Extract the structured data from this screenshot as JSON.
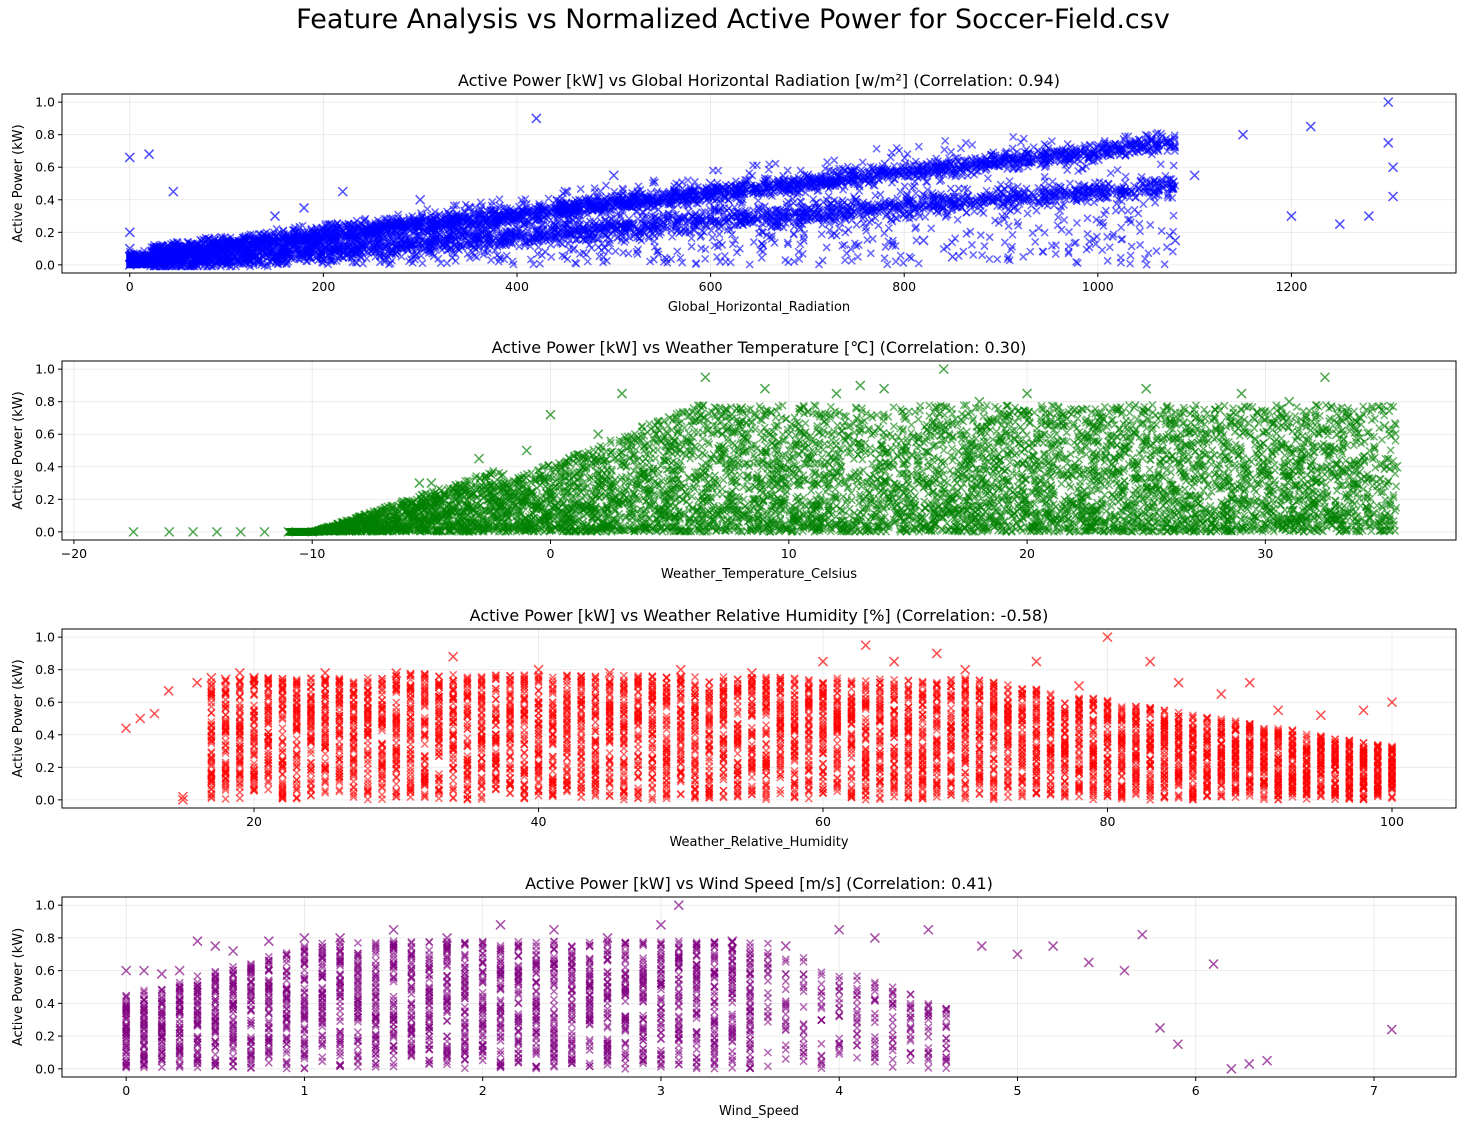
{
  "suptitle": "Feature Analysis vs Normalized Active Power for Soccer-Field.csv",
  "chart_data": [
    {
      "type": "scatter",
      "title": "Active Power [kW] vs Global Horizontal Radiation [w/m²] (Correlation: 0.94)",
      "xlabel": "Global_Horizontal_Radiation",
      "ylabel": "Active Power (kW)",
      "marker": "x",
      "color": "#0000ff",
      "xlim": [
        -70,
        1370
      ],
      "ylim": [
        -0.05,
        1.05
      ],
      "xticks": [
        0,
        200,
        400,
        600,
        800,
        1000,
        1200
      ],
      "yticks": [
        0.0,
        0.2,
        0.4,
        0.6,
        0.8,
        1.0
      ],
      "grid": true,
      "x": [
        0,
        0,
        0,
        0,
        0,
        20,
        20,
        45,
        100,
        150,
        180,
        220,
        250,
        300,
        350,
        400,
        420,
        450,
        500,
        560,
        600,
        650,
        700,
        750,
        800,
        820,
        850,
        900,
        950,
        1000,
        1050,
        1080,
        1100,
        1150,
        1200,
        1220,
        1250,
        1280,
        1300,
        1300,
        1305,
        1305
      ],
      "y": [
        0.0,
        0.05,
        0.1,
        0.2,
        0.66,
        0.68,
        0.05,
        0.45,
        0.15,
        0.3,
        0.35,
        0.45,
        0.25,
        0.4,
        0.35,
        0.3,
        0.9,
        0.45,
        0.55,
        0.3,
        0.5,
        0.35,
        0.55,
        0.4,
        0.6,
        0.15,
        0.05,
        0.45,
        0.65,
        0.65,
        0.7,
        0.15,
        0.55,
        0.8,
        0.3,
        0.85,
        0.25,
        0.3,
        1.0,
        0.75,
        0.6,
        0.42
      ]
    },
    {
      "type": "scatter",
      "title": "Active Power [kW] vs Weather Temperature [℃] (Correlation: 0.30)",
      "xlabel": "Weather_Temperature_Celsius",
      "ylabel": "Active Power (kW)",
      "marker": "x",
      "color": "#008000",
      "xlim": [
        -20.5,
        38
      ],
      "ylim": [
        -0.05,
        1.05
      ],
      "xticks": [
        -20,
        -10,
        0,
        10,
        20,
        30
      ],
      "yticks": [
        0.0,
        0.2,
        0.4,
        0.6,
        0.8,
        1.0
      ],
      "grid": true,
      "x": [
        -17.5,
        -16,
        -15,
        -14,
        -13,
        -12,
        -11,
        -10,
        -8,
        -6,
        -5.5,
        -5,
        -4,
        -3,
        -2,
        -1,
        0,
        2,
        3,
        5,
        6.5,
        8,
        9,
        10,
        12,
        13,
        14,
        16.5,
        18,
        20,
        22,
        25,
        27,
        29,
        31,
        32.5,
        33,
        34,
        35,
        35.5
      ],
      "y": [
        0.0,
        0.0,
        0.0,
        0.0,
        0.0,
        0.0,
        0.0,
        0.0,
        0.02,
        0.05,
        0.3,
        0.3,
        0.2,
        0.45,
        0.35,
        0.5,
        0.72,
        0.6,
        0.85,
        0.7,
        0.95,
        0.76,
        0.88,
        0.6,
        0.85,
        0.9,
        0.88,
        1.0,
        0.8,
        0.85,
        0.75,
        0.88,
        0.75,
        0.85,
        0.8,
        0.95,
        0.6,
        0.7,
        0.65,
        0.4
      ]
    },
    {
      "type": "scatter",
      "title": "Active Power [kW] vs Weather Relative Humidity [%] (Correlation: -0.58)",
      "xlabel": "Weather_Relative_Humidity",
      "ylabel": "Active Power (kW)",
      "marker": "x",
      "color": "#ff0000",
      "xlim": [
        6.5,
        104.5
      ],
      "ylim": [
        -0.05,
        1.05
      ],
      "xticks": [
        20,
        40,
        60,
        80,
        100
      ],
      "yticks": [
        0.0,
        0.2,
        0.4,
        0.6,
        0.8,
        1.0
      ],
      "grid": true,
      "x": [
        11,
        12,
        13,
        14,
        15,
        15,
        16,
        17,
        18,
        19,
        20,
        25,
        30,
        34,
        40,
        45,
        50,
        55,
        60,
        63,
        65,
        68,
        70,
        75,
        78,
        80,
        83,
        85,
        88,
        90,
        92,
        95,
        98,
        100
      ],
      "y": [
        0.44,
        0.5,
        0.53,
        0.67,
        0.0,
        0.02,
        0.72,
        0.75,
        0.74,
        0.78,
        0.75,
        0.78,
        0.78,
        0.88,
        0.8,
        0.78,
        0.8,
        0.78,
        0.85,
        0.95,
        0.85,
        0.9,
        0.8,
        0.85,
        0.7,
        1.0,
        0.85,
        0.72,
        0.65,
        0.72,
        0.55,
        0.52,
        0.55,
        0.6
      ]
    },
    {
      "type": "scatter",
      "title": "Active Power [kW] vs Wind Speed [m/s] (Correlation: 0.41)",
      "xlabel": "Wind_Speed",
      "ylabel": "Active Power (kW)",
      "marker": "x",
      "color": "#800080",
      "xlim": [
        -0.36,
        7.46
      ],
      "ylim": [
        -0.05,
        1.05
      ],
      "xticks": [
        0,
        1,
        2,
        3,
        4,
        5,
        6,
        7
      ],
      "yticks": [
        0.0,
        0.2,
        0.4,
        0.6,
        0.8,
        1.0
      ],
      "grid": true,
      "x": [
        0,
        0.1,
        0.2,
        0.3,
        0.4,
        0.5,
        0.6,
        0.8,
        1.0,
        1.2,
        1.5,
        1.8,
        2.1,
        2.4,
        2.7,
        3.0,
        3.1,
        3.4,
        3.7,
        4.0,
        4.2,
        4.5,
        4.8,
        5.0,
        5.2,
        5.4,
        5.6,
        5.7,
        5.8,
        5.9,
        6.1,
        6.2,
        6.3,
        6.4,
        7.1
      ],
      "y": [
        0.6,
        0.6,
        0.58,
        0.6,
        0.78,
        0.75,
        0.72,
        0.78,
        0.8,
        0.8,
        0.85,
        0.8,
        0.88,
        0.85,
        0.8,
        0.88,
        1.0,
        0.78,
        0.75,
        0.85,
        0.8,
        0.85,
        0.75,
        0.7,
        0.75,
        0.65,
        0.6,
        0.82,
        0.25,
        0.15,
        0.64,
        0.0,
        0.03,
        0.05,
        0.24
      ]
    }
  ]
}
